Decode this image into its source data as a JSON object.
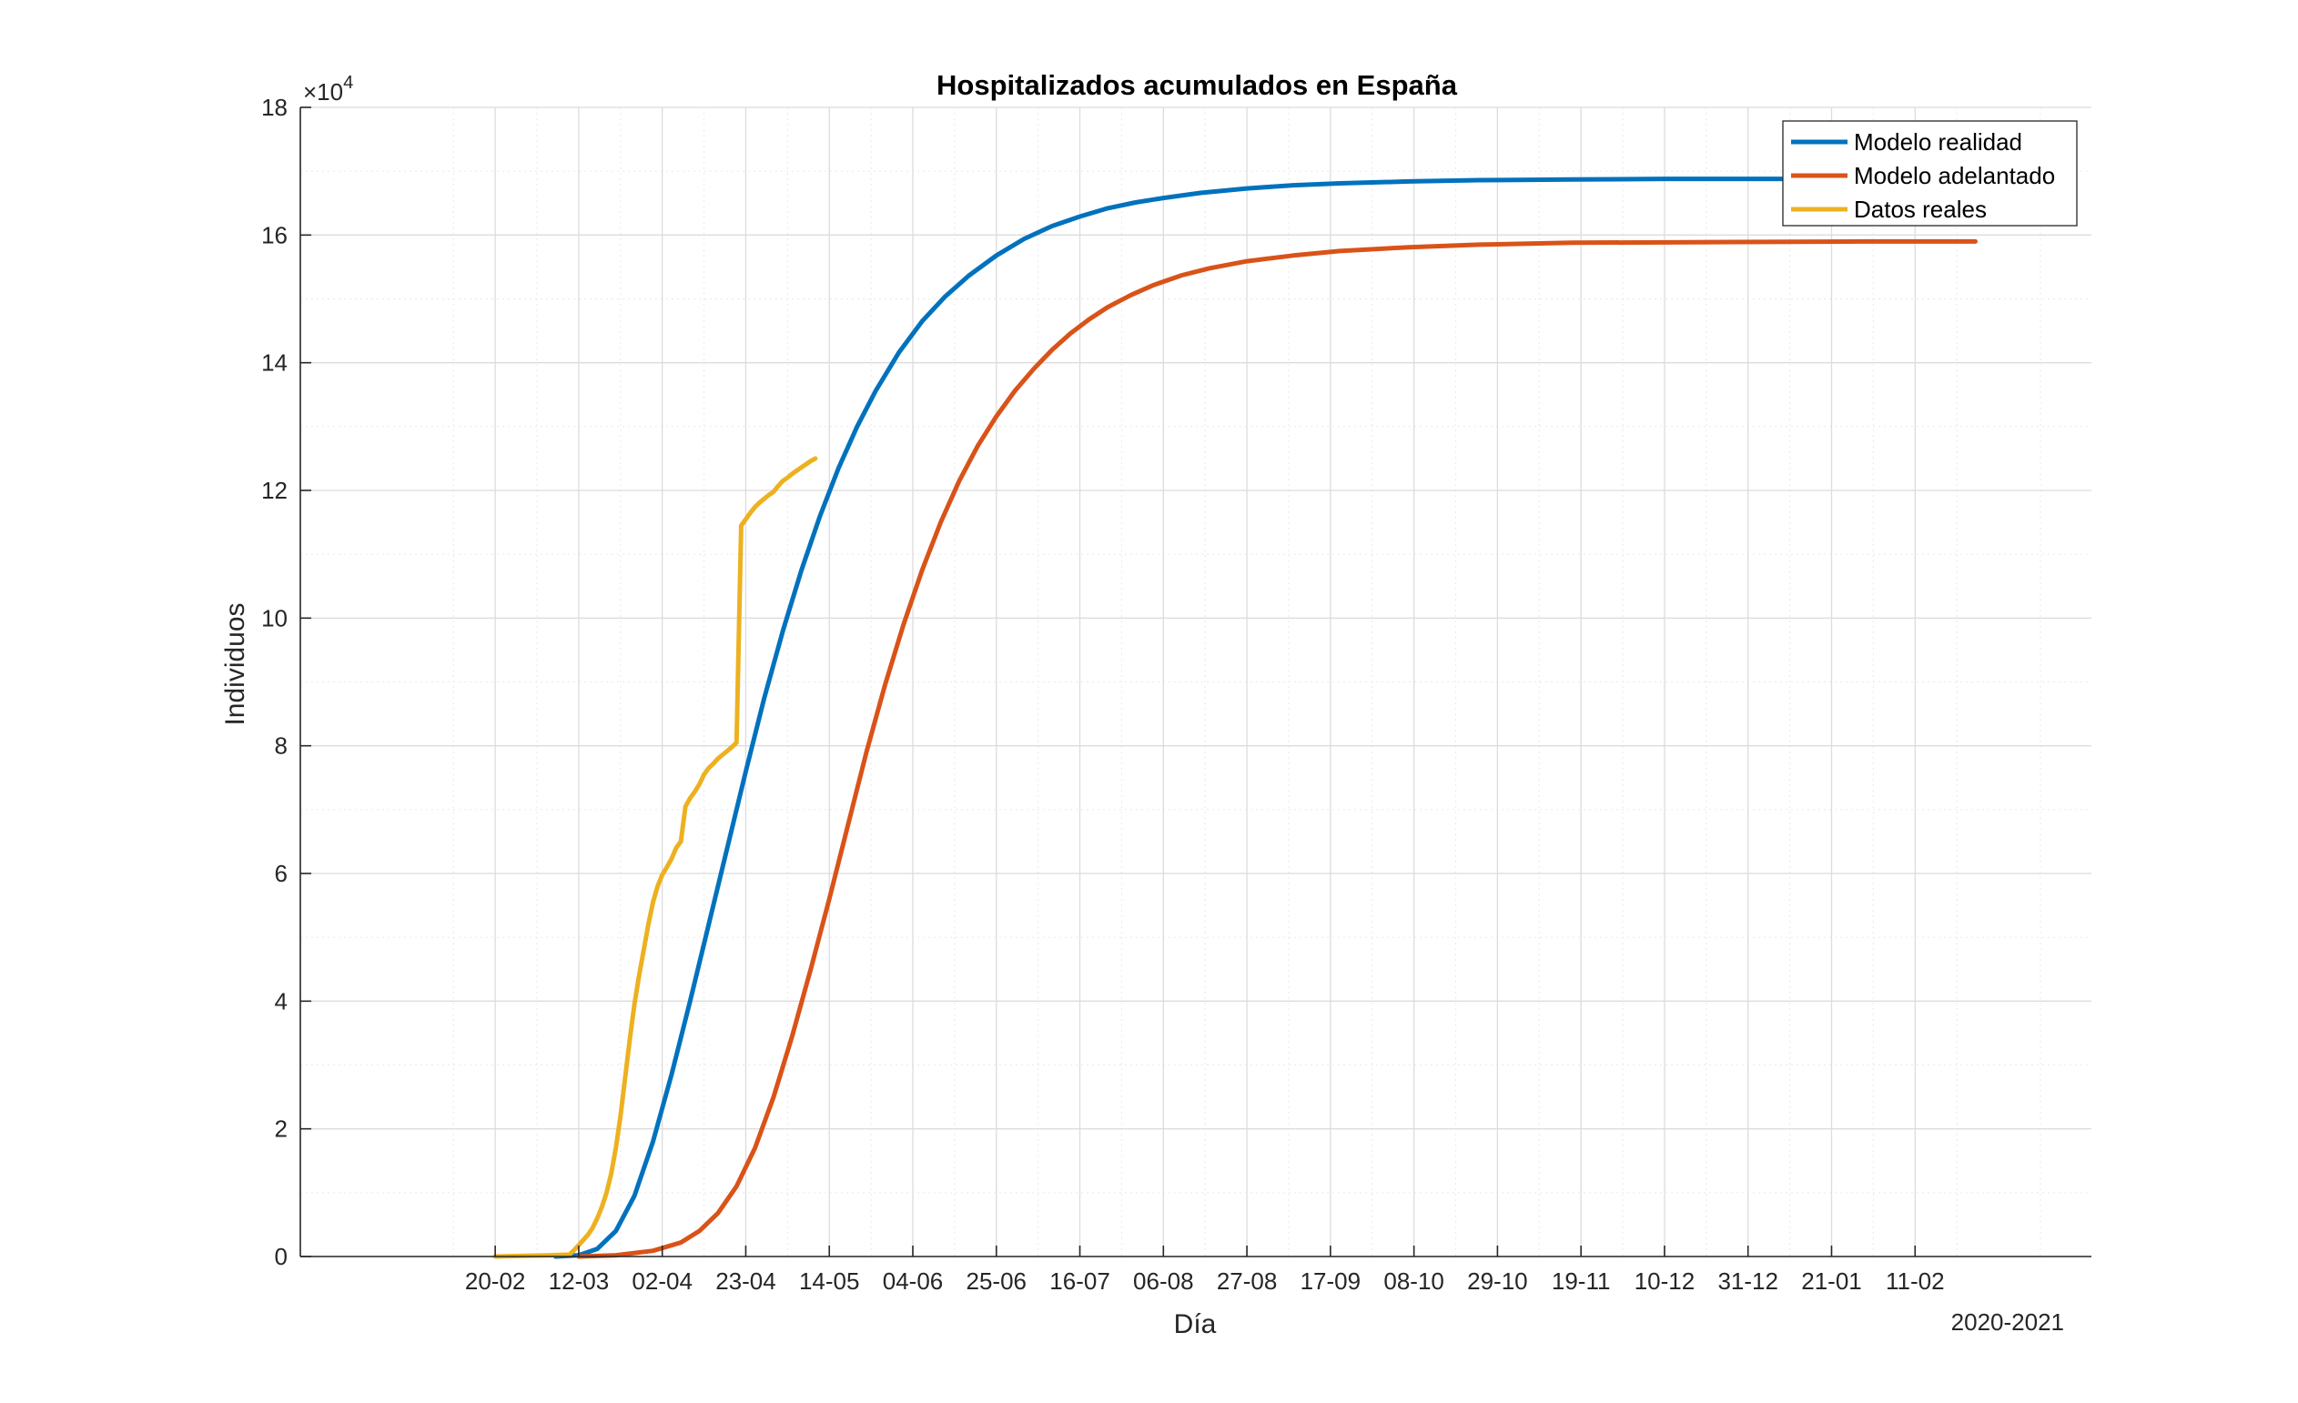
{
  "chart_data": {
    "type": "line",
    "title": "Hospitalizados acumulados en España",
    "xlabel": "Día",
    "ylabel": "Individuos",
    "x_note": "2020-2021",
    "y_exponent_label": "×10",
    "y_exponent_power": "4",
    "xlim": [
      -24,
      362
    ],
    "ylim": [
      0,
      180000
    ],
    "x_ticks": [
      {
        "x": 18,
        "label": "20-02"
      },
      {
        "x": 36,
        "label": "12-03"
      },
      {
        "x": 54,
        "label": "02-04"
      },
      {
        "x": 72,
        "label": "23-04"
      },
      {
        "x": 90,
        "label": "14-05"
      },
      {
        "x": 108,
        "label": "04-06"
      },
      {
        "x": 126,
        "label": "25-06"
      },
      {
        "x": 144,
        "label": "16-07"
      },
      {
        "x": 162,
        "label": "06-08"
      },
      {
        "x": 180,
        "label": "27-08"
      },
      {
        "x": 198,
        "label": "17-09"
      },
      {
        "x": 216,
        "label": "08-10"
      },
      {
        "x": 234,
        "label": "29-10"
      },
      {
        "x": 252,
        "label": "19-11"
      },
      {
        "x": 270,
        "label": "10-12"
      },
      {
        "x": 288,
        "label": "31-12"
      },
      {
        "x": 306,
        "label": "21-01"
      },
      {
        "x": 324,
        "label": "11-02"
      }
    ],
    "y_ticks": [
      {
        "y": 0,
        "label": "0"
      },
      {
        "y": 20000,
        "label": "2"
      },
      {
        "y": 40000,
        "label": "4"
      },
      {
        "y": 60000,
        "label": "6"
      },
      {
        "y": 80000,
        "label": "8"
      },
      {
        "y": 100000,
        "label": "10"
      },
      {
        "y": 120000,
        "label": "12"
      },
      {
        "y": 140000,
        "label": "14"
      },
      {
        "y": 160000,
        "label": "16"
      },
      {
        "y": 180000,
        "label": "18"
      }
    ],
    "grid": true,
    "minor_grid": true,
    "legend_position": "top-right",
    "series": [
      {
        "name": "Modelo realidad",
        "color": "#0072BD",
        "points": [
          [
            31,
            0
          ],
          [
            36,
            200
          ],
          [
            40,
            1200
          ],
          [
            44,
            4000
          ],
          [
            48,
            9500
          ],
          [
            52,
            18000
          ],
          [
            56,
            28500
          ],
          [
            60,
            40000
          ],
          [
            64,
            52000
          ],
          [
            68,
            64000
          ],
          [
            72,
            76000
          ],
          [
            76,
            87500
          ],
          [
            80,
            98000
          ],
          [
            84,
            107500
          ],
          [
            88,
            116000
          ],
          [
            92,
            123500
          ],
          [
            96,
            130000
          ],
          [
            100,
            135600
          ],
          [
            105,
            141600
          ],
          [
            110,
            146500
          ],
          [
            115,
            150400
          ],
          [
            120,
            153600
          ],
          [
            126,
            156800
          ],
          [
            132,
            159400
          ],
          [
            138,
            161400
          ],
          [
            144,
            162900
          ],
          [
            150,
            164200
          ],
          [
            156,
            165100
          ],
          [
            162,
            165800
          ],
          [
            170,
            166600
          ],
          [
            180,
            167300
          ],
          [
            190,
            167800
          ],
          [
            200,
            168100
          ],
          [
            215,
            168400
          ],
          [
            230,
            168600
          ],
          [
            250,
            168700
          ],
          [
            270,
            168800
          ],
          [
            290,
            168800
          ],
          [
            313,
            168800
          ]
        ]
      },
      {
        "name": "Modelo adelantado",
        "color": "#D95319",
        "points": [
          [
            36,
            0
          ],
          [
            44,
            200
          ],
          [
            52,
            900
          ],
          [
            58,
            2200
          ],
          [
            62,
            4000
          ],
          [
            66,
            6800
          ],
          [
            70,
            11000
          ],
          [
            74,
            17000
          ],
          [
            78,
            25000
          ],
          [
            82,
            34500
          ],
          [
            86,
            45000
          ],
          [
            90,
            56000
          ],
          [
            94,
            67500
          ],
          [
            98,
            79000
          ],
          [
            102,
            89500
          ],
          [
            106,
            99000
          ],
          [
            110,
            107500
          ],
          [
            114,
            115000
          ],
          [
            118,
            121500
          ],
          [
            122,
            127000
          ],
          [
            126,
            131600
          ],
          [
            130,
            135600
          ],
          [
            134,
            139000
          ],
          [
            138,
            142000
          ],
          [
            142,
            144600
          ],
          [
            146,
            146800
          ],
          [
            150,
            148700
          ],
          [
            155,
            150600
          ],
          [
            160,
            152200
          ],
          [
            166,
            153700
          ],
          [
            172,
            154800
          ],
          [
            180,
            155900
          ],
          [
            190,
            156800
          ],
          [
            200,
            157500
          ],
          [
            215,
            158100
          ],
          [
            230,
            158500
          ],
          [
            250,
            158800
          ],
          [
            280,
            158900
          ],
          [
            312,
            159000
          ],
          [
            337,
            159000
          ]
        ]
      },
      {
        "name": "Datos reales",
        "color": "#EDB120",
        "points": [
          [
            18,
            0
          ],
          [
            24,
            100
          ],
          [
            30,
            200
          ],
          [
            34,
            300
          ],
          [
            35,
            1000
          ],
          [
            36,
            1800
          ],
          [
            37,
            2600
          ],
          [
            38,
            3400
          ],
          [
            39,
            4500
          ],
          [
            40,
            6000
          ],
          [
            41,
            7800
          ],
          [
            42,
            10000
          ],
          [
            43,
            13000
          ],
          [
            44,
            17000
          ],
          [
            45,
            22000
          ],
          [
            46,
            28000
          ],
          [
            47,
            34000
          ],
          [
            48,
            39500
          ],
          [
            49,
            44000
          ],
          [
            50,
            48000
          ],
          [
            51,
            52000
          ],
          [
            52,
            55500
          ],
          [
            53,
            58000
          ],
          [
            54,
            59800
          ],
          [
            55,
            61000
          ],
          [
            56,
            62300
          ],
          [
            57,
            64000
          ],
          [
            58,
            65000
          ],
          [
            59,
            70500
          ],
          [
            60,
            71800
          ],
          [
            61,
            72800
          ],
          [
            62,
            74000
          ],
          [
            63,
            75500
          ],
          [
            64,
            76500
          ],
          [
            65,
            77200
          ],
          [
            66,
            78000
          ],
          [
            67,
            78600
          ],
          [
            68,
            79200
          ],
          [
            69,
            79800
          ],
          [
            70,
            80500
          ],
          [
            71,
            114500
          ],
          [
            72,
            115500
          ],
          [
            73,
            116500
          ],
          [
            74,
            117400
          ],
          [
            75,
            118100
          ],
          [
            76,
            118700
          ],
          [
            77,
            119300
          ],
          [
            78,
            119800
          ],
          [
            79,
            120700
          ],
          [
            80,
            121500
          ],
          [
            81,
            122000
          ],
          [
            82,
            122600
          ],
          [
            83,
            123100
          ],
          [
            84,
            123600
          ],
          [
            85,
            124100
          ],
          [
            86,
            124600
          ],
          [
            87,
            125000
          ]
        ]
      }
    ]
  }
}
